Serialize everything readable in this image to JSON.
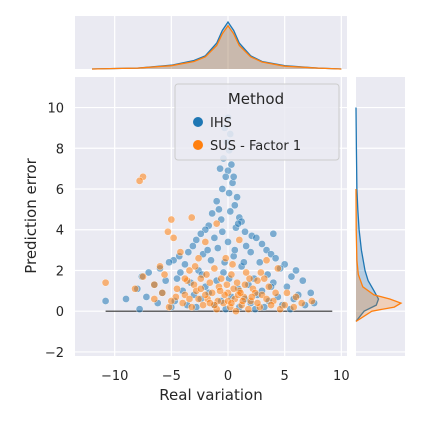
{
  "chart_data": {
    "type": "scatter",
    "title": "",
    "xlabel": "Real variation",
    "ylabel": "Prediction error",
    "xlim": [
      -13.5,
      10.5
    ],
    "ylim": [
      -2.2,
      11.5
    ],
    "x_ticks": [
      -10,
      -5,
      0,
      5,
      10
    ],
    "y_ticks": [
      -2,
      0,
      2,
      4,
      6,
      8,
      10
    ],
    "x_tick_labels": [
      "−10",
      "−5",
      "0",
      "5",
      "10"
    ],
    "y_tick_labels": [
      "−2",
      "0",
      "2",
      "4",
      "6",
      "8",
      "10"
    ],
    "grid": true,
    "legend": {
      "title": "Method",
      "placement": "top-right"
    },
    "reference_line": {
      "x_from": -10.8,
      "x_to": 9.2,
      "y": 0
    },
    "series": [
      {
        "name": "IHS",
        "color": "#1f77b4",
        "points": [
          [
            0.0,
            9.5
          ],
          [
            -0.3,
            9.0
          ],
          [
            0.2,
            8.7
          ],
          [
            -0.1,
            8.3
          ],
          [
            0.1,
            7.9
          ],
          [
            -0.4,
            7.5
          ],
          [
            0.3,
            7.2
          ],
          [
            0.0,
            6.9
          ],
          [
            -0.2,
            6.6
          ],
          [
            0.4,
            6.3
          ],
          [
            -0.5,
            6.0
          ],
          [
            0.1,
            5.8
          ],
          [
            -1.0,
            5.4
          ],
          [
            0.6,
            5.2
          ],
          [
            -0.8,
            5.0
          ],
          [
            0.2,
            4.9
          ],
          [
            -1.4,
            4.8
          ],
          [
            1.0,
            4.6
          ],
          [
            -0.6,
            4.5
          ],
          [
            1.2,
            4.4
          ],
          [
            -1.7,
            4.2
          ],
          [
            0.7,
            4.1
          ],
          [
            -2.0,
            4.0
          ],
          [
            1.5,
            3.9
          ],
          [
            -2.4,
            3.8
          ],
          [
            2.1,
            3.7
          ],
          [
            -1.2,
            3.6
          ],
          [
            2.5,
            3.6
          ],
          [
            -2.8,
            3.5
          ],
          [
            0.0,
            3.4
          ],
          [
            3.0,
            3.3
          ],
          [
            -3.1,
            3.2
          ],
          [
            1.6,
            3.2
          ],
          [
            -0.9,
            3.1
          ],
          [
            3.4,
            3.0
          ],
          [
            -3.5,
            2.9
          ],
          [
            2.0,
            2.9
          ],
          [
            -2.2,
            2.8
          ],
          [
            3.8,
            2.8
          ],
          [
            -4.3,
            2.7
          ],
          [
            0.5,
            2.7
          ],
          [
            4.2,
            2.6
          ],
          [
            -4.8,
            2.5
          ],
          [
            -1.5,
            2.5
          ],
          [
            2.8,
            2.4
          ],
          [
            -5.2,
            2.4
          ],
          [
            5.0,
            2.3
          ],
          [
            -3.8,
            2.3
          ],
          [
            1.2,
            2.2
          ],
          [
            -6.0,
            2.1
          ],
          [
            4.6,
            2.1
          ],
          [
            -2.6,
            2.0
          ],
          [
            6.0,
            2.0
          ],
          [
            -7.0,
            1.9
          ],
          [
            -0.4,
            1.9
          ],
          [
            3.5,
            1.8
          ],
          [
            -7.6,
            1.7
          ],
          [
            5.6,
            1.7
          ],
          [
            -4.5,
            1.6
          ],
          [
            2.3,
            1.6
          ],
          [
            -5.5,
            1.5
          ],
          [
            6.6,
            1.5
          ],
          [
            -1.0,
            1.5
          ],
          [
            -3.3,
            1.4
          ],
          [
            4.0,
            1.4
          ],
          [
            -6.5,
            1.3
          ],
          [
            1.8,
            1.3
          ],
          [
            -2.0,
            1.2
          ],
          [
            5.2,
            1.2
          ],
          [
            -8.0,
            1.1
          ],
          [
            0.9,
            1.1
          ],
          [
            -4.0,
            1.0
          ],
          [
            3.0,
            1.0
          ],
          [
            -5.8,
            0.9
          ],
          [
            7.3,
            0.9
          ],
          [
            -1.7,
            0.9
          ],
          [
            2.6,
            0.8
          ],
          [
            -3.0,
            0.8
          ],
          [
            6.2,
            0.8
          ],
          [
            -7.2,
            0.7
          ],
          [
            0.3,
            0.7
          ],
          [
            4.4,
            0.7
          ],
          [
            -2.4,
            0.6
          ],
          [
            -9.0,
            0.6
          ],
          [
            1.5,
            0.6
          ],
          [
            5.8,
            0.6
          ],
          [
            -4.7,
            0.5
          ],
          [
            3.6,
            0.5
          ],
          [
            -10.8,
            0.5
          ],
          [
            -0.6,
            0.5
          ],
          [
            7.6,
            0.4
          ],
          [
            -6.2,
            0.4
          ],
          [
            2.0,
            0.4
          ],
          [
            -3.6,
            0.3
          ],
          [
            4.8,
            0.3
          ],
          [
            -1.2,
            0.3
          ],
          [
            6.8,
            0.3
          ],
          [
            -5.0,
            0.2
          ],
          [
            1.0,
            0.2
          ],
          [
            -2.8,
            0.2
          ],
          [
            3.2,
            0.2
          ],
          [
            -7.8,
            0.1
          ],
          [
            5.5,
            0.1
          ],
          [
            -0.2,
            0.1
          ],
          [
            2.4,
            0.1
          ],
          [
            4.0,
            3.8
          ],
          [
            -1.8,
            3.0
          ],
          [
            0.8,
            5.6
          ],
          [
            -0.7,
            7.0
          ],
          [
            0.5,
            6.6
          ],
          [
            1.4,
            2.4
          ],
          [
            -2.3,
            1.8
          ],
          [
            3.8,
            1.2
          ],
          [
            -4.2,
            1.9
          ],
          [
            0.1,
            1.6
          ],
          [
            -0.3,
            2.4
          ],
          [
            0.6,
            3.0
          ],
          [
            -0.5,
            3.9
          ],
          [
            0.9,
            4.3
          ]
        ]
      },
      {
        "name": "SUS - Factor 1",
        "color": "#ff7f0e",
        "points": [
          [
            -7.5,
            6.6
          ],
          [
            -7.8,
            6.4
          ],
          [
            -5.0,
            4.5
          ],
          [
            -1.0,
            4.3
          ],
          [
            -5.3,
            3.9
          ],
          [
            -3.2,
            4.6
          ],
          [
            -4.8,
            3.6
          ],
          [
            -2.0,
            3.4
          ],
          [
            1.0,
            3.5
          ],
          [
            -6.0,
            2.2
          ],
          [
            -2.6,
            2.6
          ],
          [
            -4.2,
            2.9
          ],
          [
            3.4,
            2.5
          ],
          [
            -7.5,
            1.7
          ],
          [
            -5.6,
            1.8
          ],
          [
            -3.4,
            2.0
          ],
          [
            4.4,
            2.1
          ],
          [
            -10.8,
            1.4
          ],
          [
            -6.5,
            1.3
          ],
          [
            -8.2,
            1.1
          ],
          [
            -5.8,
            0.9
          ],
          [
            -2.4,
            1.6
          ],
          [
            -1.2,
            2.1
          ],
          [
            0.4,
            2.3
          ],
          [
            1.6,
            1.9
          ],
          [
            2.6,
            1.5
          ],
          [
            3.6,
            1.2
          ],
          [
            5.2,
            0.9
          ],
          [
            6.0,
            0.7
          ],
          [
            7.4,
            0.5
          ],
          [
            -4.5,
            1.1
          ],
          [
            -3.8,
            0.8
          ],
          [
            -3.0,
            1.3
          ],
          [
            -1.8,
            0.6
          ],
          [
            -0.8,
            1.2
          ],
          [
            0.0,
            0.9
          ],
          [
            0.8,
            1.4
          ],
          [
            1.4,
            0.7
          ],
          [
            2.2,
            1.1
          ],
          [
            3.0,
            0.8
          ],
          [
            4.0,
            0.5
          ],
          [
            -2.2,
            0.3
          ],
          [
            -1.4,
            0.9
          ],
          [
            -0.4,
            0.4
          ],
          [
            0.6,
            0.6
          ],
          [
            1.2,
            0.3
          ],
          [
            2.0,
            0.5
          ],
          [
            2.8,
            0.2
          ],
          [
            3.8,
            0.3
          ],
          [
            -4.0,
            0.4
          ],
          [
            -3.2,
            0.2
          ],
          [
            -2.6,
            0.6
          ],
          [
            -1.0,
            0.1
          ],
          [
            0.2,
            0.2
          ],
          [
            1.8,
            0.1
          ],
          [
            4.6,
            0.1
          ],
          [
            -5.2,
            0.2
          ],
          [
            5.8,
            0.2
          ],
          [
            -0.6,
            1.6
          ],
          [
            0.3,
            1.8
          ],
          [
            -0.2,
            2.6
          ],
          [
            1.0,
            1.0
          ],
          [
            -1.6,
            1.4
          ],
          [
            2.4,
            0.9
          ],
          [
            -2.8,
            1.0
          ],
          [
            3.2,
            1.6
          ],
          [
            -3.6,
            1.5
          ],
          [
            4.2,
            0.9
          ],
          [
            0.7,
            0.0
          ],
          [
            -0.9,
            0.5
          ],
          [
            1.5,
            1.3
          ],
          [
            -2.0,
            0.8
          ],
          [
            2.6,
            0.4
          ],
          [
            -3.4,
            0.6
          ],
          [
            3.4,
            0.6
          ],
          [
            -4.6,
            0.7
          ],
          [
            0.0,
            0.5
          ],
          [
            -0.3,
            0.8
          ],
          [
            0.5,
            1.1
          ],
          [
            -1.2,
            0.3
          ],
          [
            1.3,
            0.5
          ],
          [
            -2.4,
            1.1
          ],
          [
            0.9,
            0.8
          ],
          [
            -1.6,
            0.4
          ],
          [
            2.1,
            0.7
          ],
          [
            -0.7,
            1.0
          ],
          [
            -3.8,
            1.6
          ],
          [
            0.3,
            0.4
          ],
          [
            -0.1,
            1.3
          ],
          [
            1.1,
            0.9
          ],
          [
            -5.0,
            0.5
          ],
          [
            6.5,
            0.4
          ],
          [
            -6.5,
            0.6
          ],
          [
            5.0,
            0.3
          ],
          [
            -1.9,
            1.8
          ],
          [
            1.9,
            1.6
          ],
          [
            -2.9,
            2.2
          ],
          [
            2.9,
            1.9
          ]
        ]
      }
    ],
    "marginal_x": {
      "type": "kde",
      "series": [
        {
          "name": "IHS",
          "x": [
            -12,
            -8,
            -5,
            -3,
            -2,
            -1,
            -0.5,
            0,
            0.5,
            1,
            2,
            3,
            5,
            8,
            10
          ],
          "density": [
            0.0,
            0.02,
            0.08,
            0.18,
            0.28,
            0.55,
            0.82,
            1.0,
            0.82,
            0.55,
            0.28,
            0.16,
            0.07,
            0.02,
            0.0
          ]
        },
        {
          "name": "SUS - Factor 1",
          "x": [
            -12,
            -8,
            -5,
            -3,
            -2,
            -1,
            -0.5,
            0,
            0.5,
            1,
            2,
            3,
            5,
            8,
            10
          ],
          "density": [
            0.0,
            0.02,
            0.07,
            0.16,
            0.26,
            0.5,
            0.75,
            0.92,
            0.75,
            0.5,
            0.26,
            0.15,
            0.06,
            0.02,
            0.0
          ]
        }
      ]
    },
    "marginal_y": {
      "type": "kde",
      "series": [
        {
          "name": "IHS",
          "y": [
            -0.5,
            0,
            0.3,
            0.6,
            1.0,
            1.5,
            2,
            3,
            4,
            5,
            6,
            8,
            10
          ],
          "density": [
            0.0,
            0.18,
            0.45,
            0.5,
            0.4,
            0.27,
            0.2,
            0.12,
            0.07,
            0.04,
            0.02,
            0.01,
            0.0
          ]
        },
        {
          "name": "SUS - Factor 1",
          "y": [
            -0.5,
            0,
            0.2,
            0.4,
            0.6,
            0.8,
            1.2,
            1.8,
            2.5,
            4,
            6
          ],
          "density": [
            0.0,
            0.35,
            0.85,
            1.0,
            0.75,
            0.4,
            0.15,
            0.05,
            0.02,
            0.005,
            0.0
          ]
        }
      ]
    }
  }
}
